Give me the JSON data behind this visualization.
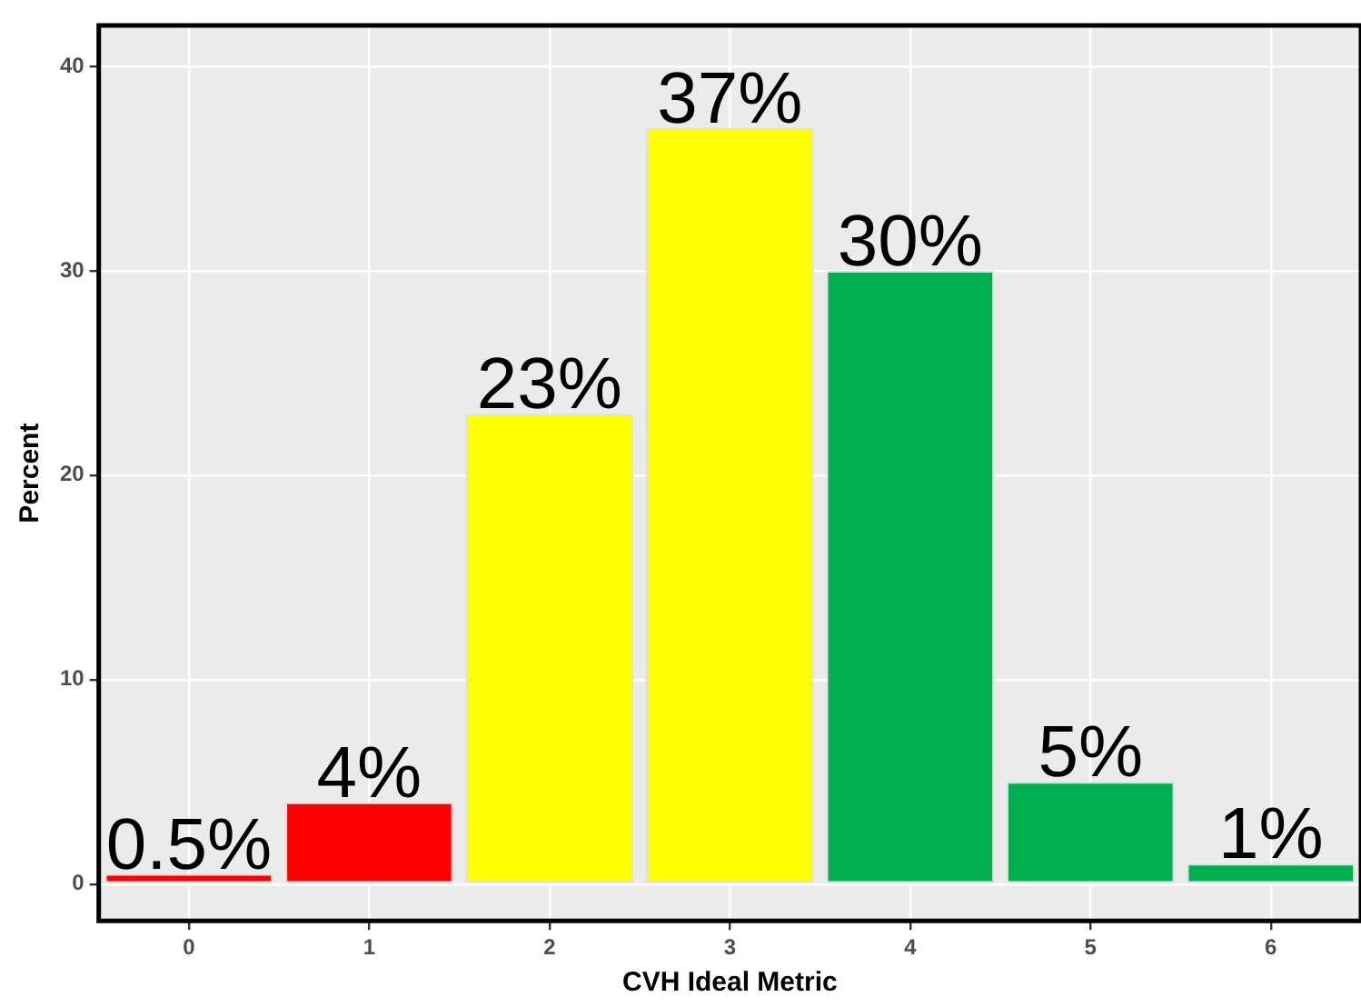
{
  "chart_data": {
    "type": "bar",
    "xlabel": "CVH Ideal Metric",
    "ylabel": "Percent",
    "categories": [
      "0",
      "1",
      "2",
      "3",
      "4",
      "5",
      "6"
    ],
    "values": [
      0.5,
      4,
      23,
      37,
      30,
      5,
      1
    ],
    "value_labels": [
      "0.5%",
      "4%",
      "23%",
      "37%",
      "30%",
      "5%",
      "1%"
    ],
    "colors": [
      "#ff0000",
      "#ff0000",
      "#ffff00",
      "#ffff00",
      "#00b050",
      "#00b050",
      "#00b050"
    ],
    "ylim": [
      -1.8,
      42
    ],
    "yticks": [
      0,
      10,
      20,
      30,
      40
    ],
    "grid": true,
    "legend": false
  }
}
